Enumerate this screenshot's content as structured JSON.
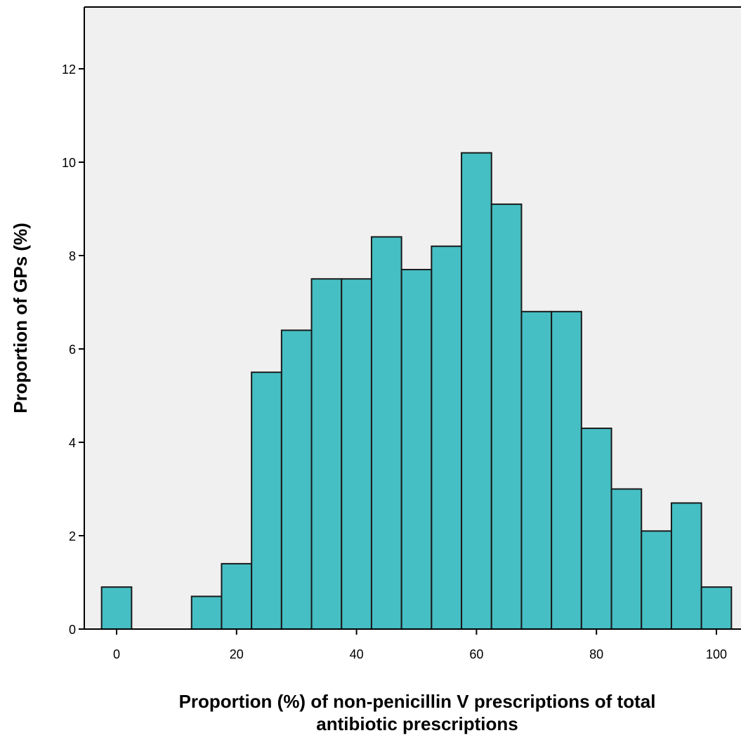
{
  "chart_data": {
    "type": "bar",
    "subtype": "histogram",
    "xlabel_lines": [
      "Proportion (%) of non-penicillin V prescriptions of total",
      "antibiotic prescriptions"
    ],
    "ylabel": "Proportion of GPs (%)",
    "xlim": [
      -5,
      105
    ],
    "ylim": [
      0,
      13.5
    ],
    "x_ticks": [
      0,
      20,
      40,
      60,
      80,
      100
    ],
    "y_ticks": [
      0,
      2,
      4,
      6,
      8,
      10,
      12
    ],
    "bin_width": 5,
    "bins": [
      {
        "center": 0,
        "value": 0.9
      },
      {
        "center": 15,
        "value": 0.7
      },
      {
        "center": 20,
        "value": 1.4
      },
      {
        "center": 25,
        "value": 5.5
      },
      {
        "center": 30,
        "value": 6.4
      },
      {
        "center": 35,
        "value": 7.5
      },
      {
        "center": 40,
        "value": 7.5
      },
      {
        "center": 45,
        "value": 8.4
      },
      {
        "center": 50,
        "value": 7.7
      },
      {
        "center": 55,
        "value": 8.2
      },
      {
        "center": 60,
        "value": 10.2
      },
      {
        "center": 65,
        "value": 9.1
      },
      {
        "center": 70,
        "value": 6.8
      },
      {
        "center": 75,
        "value": 6.8
      },
      {
        "center": 80,
        "value": 4.3
      },
      {
        "center": 85,
        "value": 3.0
      },
      {
        "center": 90,
        "value": 2.1
      },
      {
        "center": 95,
        "value": 2.7
      },
      {
        "center": 100,
        "value": 0.9
      }
    ],
    "colors": {
      "bar_fill": "#45bfc4",
      "bar_stroke": "#1a1a1a",
      "plot_background": "#f0f0f0",
      "axis": "#000000"
    },
    "grid": false,
    "legend": "none"
  }
}
